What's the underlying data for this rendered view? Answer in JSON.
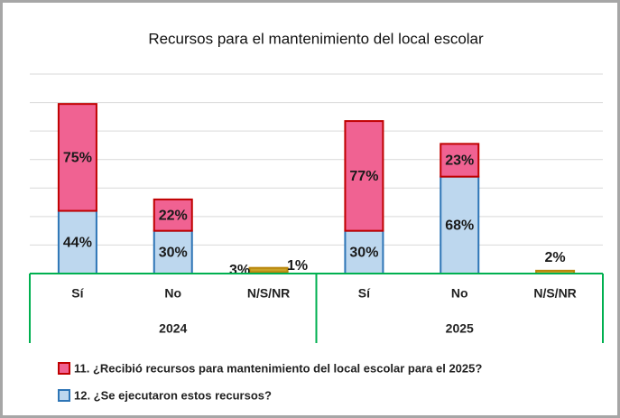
{
  "chart_data": {
    "type": "stacked-bar",
    "title": "Recursos para  el mantenimiento del local escolar",
    "groups": [
      "2024",
      "2025"
    ],
    "categories": [
      "Sí",
      "No",
      "N/S/NR",
      "Sí",
      "No",
      "N/S/NR"
    ],
    "series": [
      {
        "name": "12. ¿Se ejecutaron estos recursos?",
        "color": "#bdd7ee",
        "colors": [
          "#bdd7ee",
          "#bdd7ee",
          "#c9a227",
          "#bdd7ee",
          "#bdd7ee",
          "#c9a227"
        ],
        "values": [
          44,
          30,
          1,
          30,
          68,
          null
        ],
        "value_labels": [
          "44%",
          "30%",
          "1%",
          "30%",
          "68%",
          null
        ]
      },
      {
        "name": "11. ¿Recibió recursos para mantenimiento del local escolar para el 2025?",
        "color": "#f06292",
        "colors": [
          "#f06292",
          "#f06292",
          "#c9a227",
          "#f06292",
          "#f06292",
          "#c9a227"
        ],
        "values": [
          75,
          22,
          3,
          77,
          23,
          2
        ],
        "value_labels": [
          "75%",
          "22%",
          "3%",
          "77%",
          "23%",
          "2%"
        ]
      }
    ],
    "ylim": [
      0,
      140
    ],
    "yticks": [
      0,
      20,
      40,
      60,
      80,
      100,
      120,
      140
    ],
    "grid": true
  }
}
